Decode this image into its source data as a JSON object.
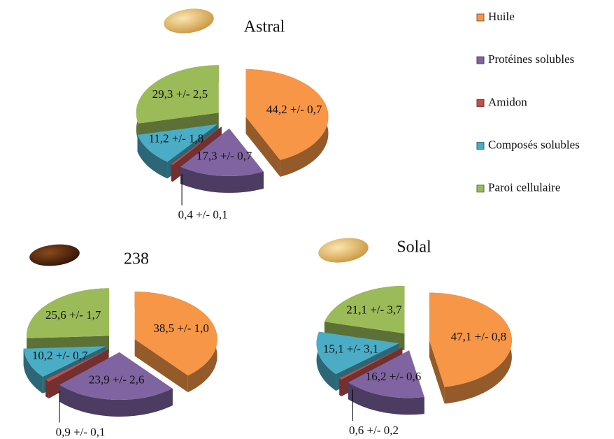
{
  "legend": [
    {
      "name": "Huile",
      "color": "#f79646"
    },
    {
      "name": "Protéines solubles",
      "color": "#8064a2"
    },
    {
      "name": "Amidon",
      "color": "#c0504d"
    },
    {
      "name": "Composés solubles",
      "color": "#4bacc6"
    },
    {
      "name": "Paroi cellulaire",
      "color": "#9bbb59"
    }
  ],
  "chart_data": [
    {
      "type": "pie",
      "title": "Astral",
      "values": [
        44.2,
        17.3,
        0.4,
        11.2,
        29.3
      ],
      "value_labels": [
        "44,2 +/- 0,7",
        "17,3 +/- 0,7",
        "0,4 +/- 0,1",
        "11,2 +/- 1,8",
        "29,3 +/- 2,5"
      ]
    },
    {
      "type": "pie",
      "title": "238",
      "values": [
        38.5,
        23.9,
        0.9,
        10.2,
        25.6
      ],
      "value_labels": [
        "38,5 +/- 1,0",
        "23,9 +/- 2,6",
        "0,9 +/- 0,1",
        "10,2 +/- 0,7",
        "25,6 +/- 1,7"
      ]
    },
    {
      "type": "pie",
      "title": "Solal",
      "values": [
        47.1,
        16.2,
        0.6,
        15.1,
        21.1
      ],
      "value_labels": [
        "47,1 +/- 0,8",
        "16,2 +/- 0,6",
        "0,6 +/- 0,2",
        "15,1 +/- 3,1",
        "21,1 +/- 3,7"
      ]
    }
  ]
}
